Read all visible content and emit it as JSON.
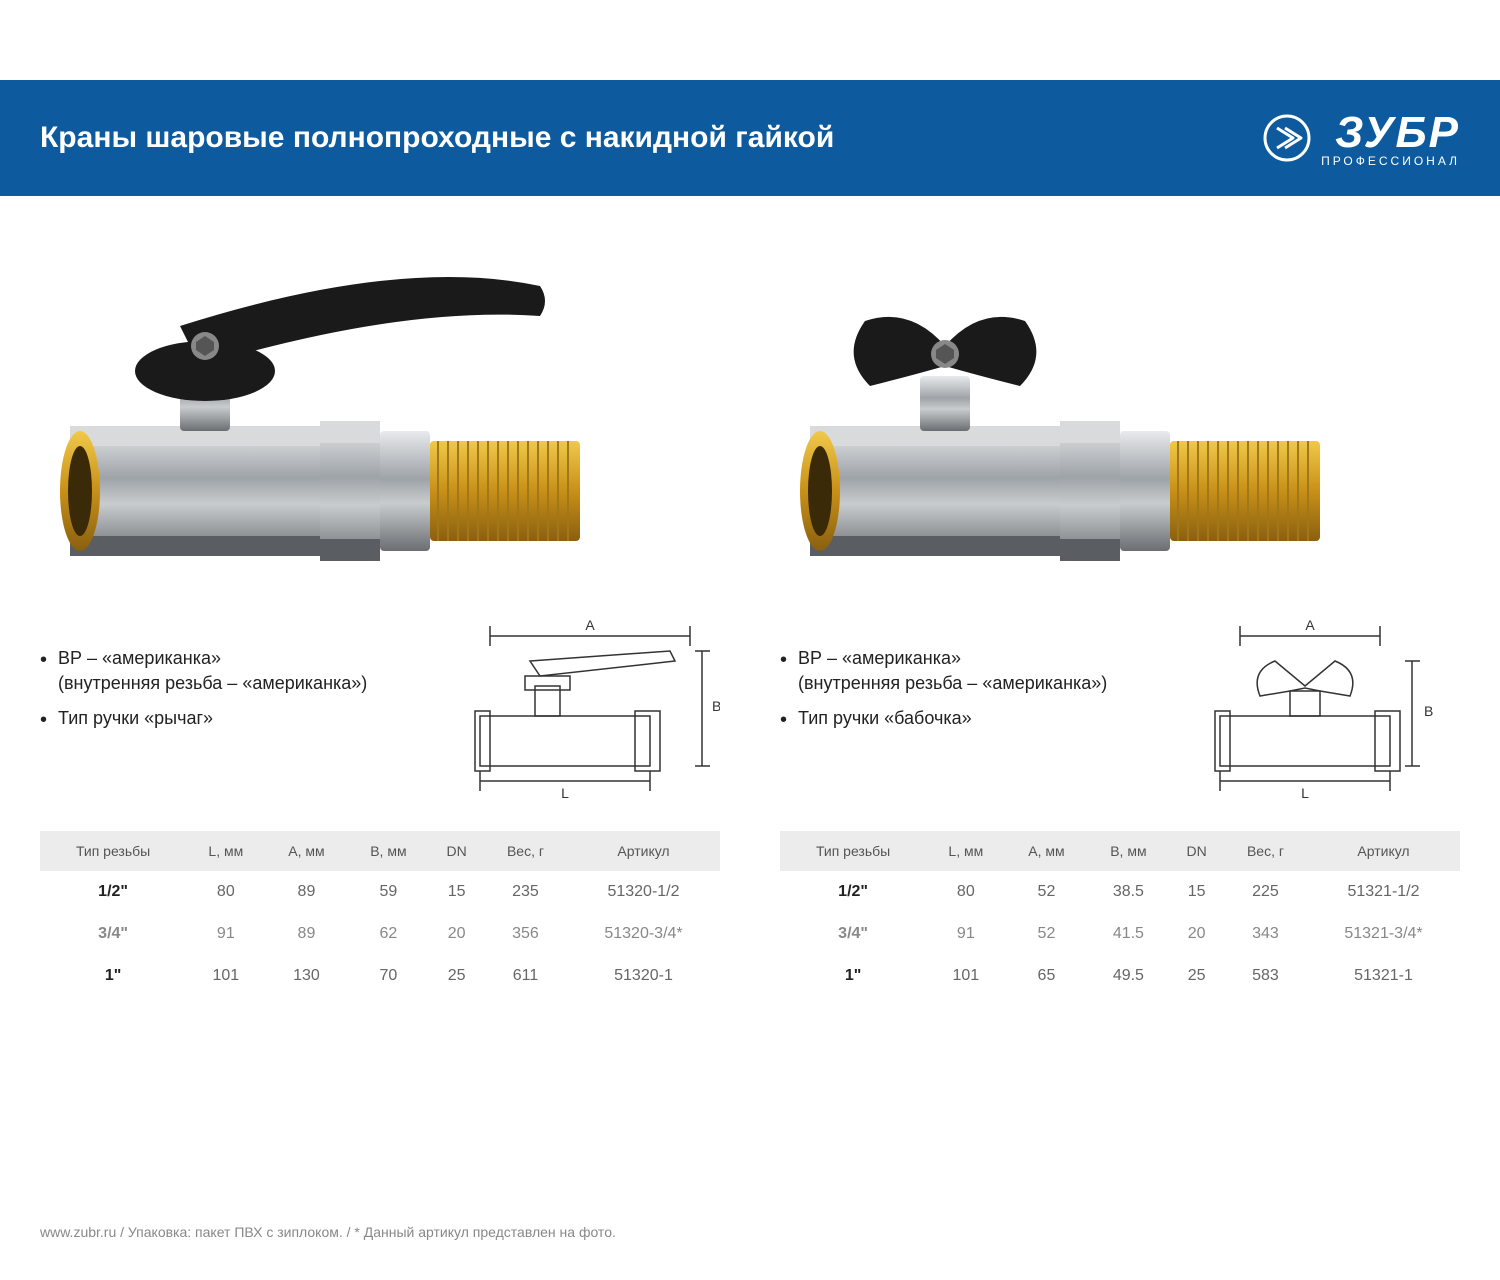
{
  "header": {
    "title": "Краны шаровые полнопроходные с накидной гайкой",
    "brand": "ЗУБР",
    "brand_sub": "ПРОФЕССИОНАЛ"
  },
  "colors": {
    "band": "#0d5a9e",
    "th_bg": "#ececec",
    "brass": "#d4a017",
    "chrome": "#b8bcc0",
    "handle": "#1a1a1a"
  },
  "left": {
    "bullets": [
      "ВР – «американка»\n(внутренняя резьба – «американка»)",
      "Тип ручки «рычаг»"
    ],
    "schematic_labels": {
      "A": "A",
      "B": "B",
      "L": "L"
    },
    "table": {
      "columns": [
        "Тип резьбы",
        "L, мм",
        "A, мм",
        "B, мм",
        "DN",
        "Вес, г",
        "Артикул"
      ],
      "rows": [
        [
          "1/2\"",
          "80",
          "89",
          "59",
          "15",
          "235",
          "51320-1/2"
        ],
        [
          "3/4\"",
          "91",
          "89",
          "62",
          "20",
          "356",
          "51320-3/4*"
        ],
        [
          "1\"",
          "101",
          "130",
          "70",
          "25",
          "611",
          "51320-1"
        ]
      ]
    }
  },
  "right": {
    "bullets": [
      "ВР – «американка»\n(внутренняя резьба – «американка»)",
      "Тип ручки «бабочка»"
    ],
    "schematic_labels": {
      "A": "A",
      "B": "B",
      "L": "L"
    },
    "table": {
      "columns": [
        "Тип резьбы",
        "L, мм",
        "A, мм",
        "B, мм",
        "DN",
        "Вес, г",
        "Артикул"
      ],
      "rows": [
        [
          "1/2\"",
          "80",
          "52",
          "38.5",
          "15",
          "225",
          "51321-1/2"
        ],
        [
          "3/4\"",
          "91",
          "52",
          "41.5",
          "20",
          "343",
          "51321-3/4*"
        ],
        [
          "1\"",
          "101",
          "65",
          "49.5",
          "25",
          "583",
          "51321-1"
        ]
      ]
    }
  },
  "footer": "www.zubr.ru  /  Упаковка: пакет ПВХ с зиплоком.  /  * Данный артикул представлен на фото."
}
